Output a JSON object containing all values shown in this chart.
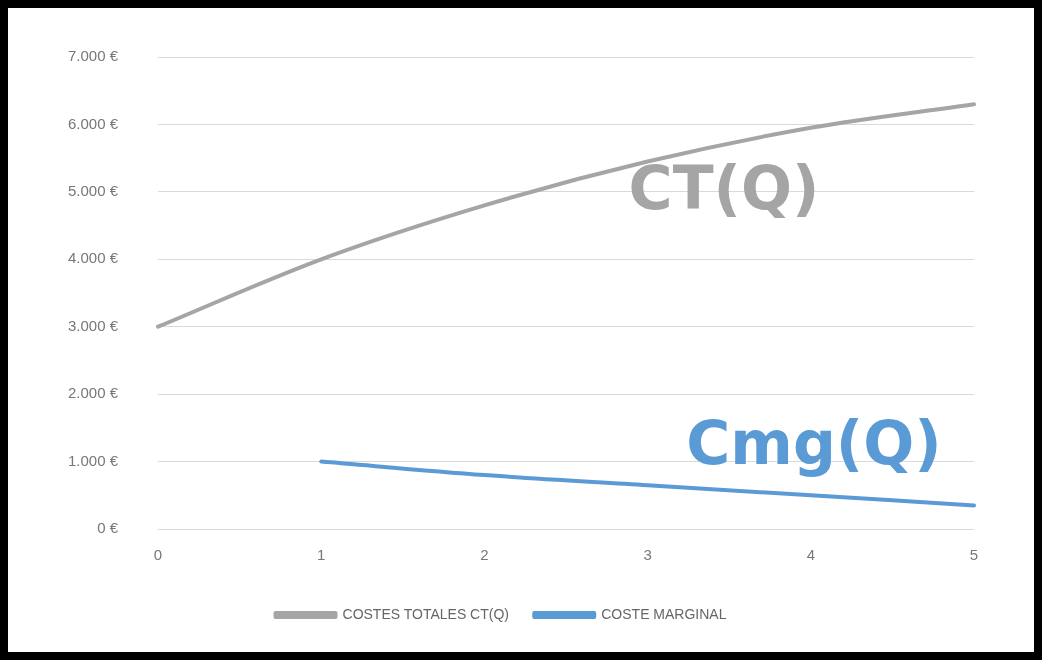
{
  "chart_data": {
    "type": "line",
    "categories": [
      "0",
      "1",
      "2",
      "3",
      "4",
      "5"
    ],
    "series": [
      {
        "name": "COSTES TOTALES CT(Q)",
        "color": "#a5a5a5",
        "values": [
          3000,
          4000,
          4800,
          5450,
          5950,
          6300
        ]
      },
      {
        "name": "COSTE MARGINAL",
        "color": "#5b9bd5",
        "values": [
          null,
          1000,
          800,
          650,
          500,
          350
        ]
      }
    ],
    "ylim": [
      0,
      7000
    ],
    "yticks": [
      {
        "value": 0,
        "label": "0 €"
      },
      {
        "value": 1000,
        "label": "1.000 €"
      },
      {
        "value": 2000,
        "label": "2.000 €"
      },
      {
        "value": 3000,
        "label": "3.000 €"
      },
      {
        "value": 4000,
        "label": "4.000 €"
      },
      {
        "value": 5000,
        "label": "5.000 €"
      },
      {
        "value": 6000,
        "label": "6.000 €"
      },
      {
        "value": 7000,
        "label": "7.000 €"
      }
    ],
    "grid": "y",
    "legend": "bottom",
    "marker": "none",
    "line_style": "solid",
    "annotations": [
      "CT(Q)",
      "Cmg(Q)"
    ]
  }
}
